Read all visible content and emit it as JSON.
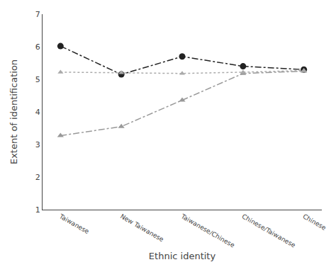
{
  "chart_data": {
    "type": "line",
    "categories": [
      "Taiwanese",
      "New Taiwanese",
      "Taiwanese/Chinese",
      "Chinese/Taiwanese",
      "Chinese"
    ],
    "series": [
      {
        "color": "#222222",
        "values": [
          6.02,
          5.15,
          5.7,
          5.4,
          5.3
        ],
        "marker": "circle",
        "line_style": "dashdot"
      },
      {
        "color": "#999999",
        "values": [
          3.27,
          3.55,
          4.36,
          5.18,
          5.25
        ],
        "marker": "triangle",
        "line_style": "dashdot"
      },
      {
        "color": "#aaaaaa",
        "values": [
          5.22,
          5.2,
          5.18,
          5.22,
          5.27
        ],
        "marker": "triangle",
        "line_style": "dotted"
      }
    ],
    "xlabel": "Ethnic identity",
    "ylabel": "Extent of identification",
    "ylim": [
      1,
      7
    ],
    "yticks": [
      1,
      2,
      3,
      4,
      5,
      6,
      7
    ],
    "grid": false
  }
}
